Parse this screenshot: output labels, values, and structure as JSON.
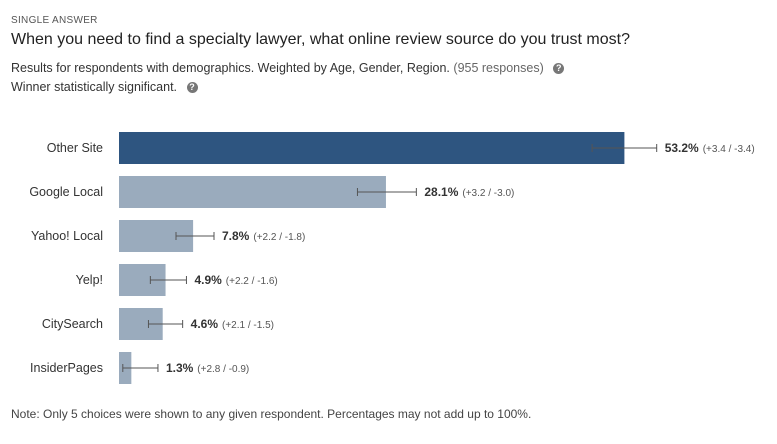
{
  "header": {
    "kicker": "SINGLE ANSWER",
    "question": "When you need to find a specialty lawyer, what online review source do you trust most?",
    "results_text": "Results for respondents with demographics. Weighted by Age, Gender, Region.",
    "responses_text": "(955 responses)",
    "winner_text": "Winner statistically significant.",
    "help_icon": "question-circle-icon"
  },
  "note": "Note: Only 5 choices were shown to any given respondent. Percentages may not add up to 100%.",
  "colors": {
    "winner_bar": "#2e5580",
    "other_bar": "#9aabbd",
    "error_bar": "#555555"
  },
  "chart_data": {
    "type": "bar",
    "orientation": "horizontal",
    "categories": [
      "Other Site",
      "Google Local",
      "Yahoo! Local",
      "Yelp!",
      "CitySearch",
      "InsiderPages"
    ],
    "values": [
      53.2,
      28.1,
      7.8,
      4.9,
      4.6,
      1.3
    ],
    "value_labels": [
      "53.2%",
      "28.1%",
      "7.8%",
      "4.9%",
      "4.6%",
      "1.3%"
    ],
    "errors_plus": [
      3.4,
      3.2,
      2.2,
      2.2,
      2.1,
      2.8
    ],
    "errors_minus": [
      3.4,
      3.0,
      1.8,
      1.6,
      1.5,
      0.9
    ],
    "error_labels": [
      "(+3.4 / -3.4)",
      "(+3.2 / -3.0)",
      "(+2.2 / -1.8)",
      "(+2.2 / -1.6)",
      "(+2.1 / -1.5)",
      "(+2.8 / -0.9)"
    ],
    "winner_index": 0,
    "xlim": [
      0,
      100
    ],
    "grid": false
  }
}
